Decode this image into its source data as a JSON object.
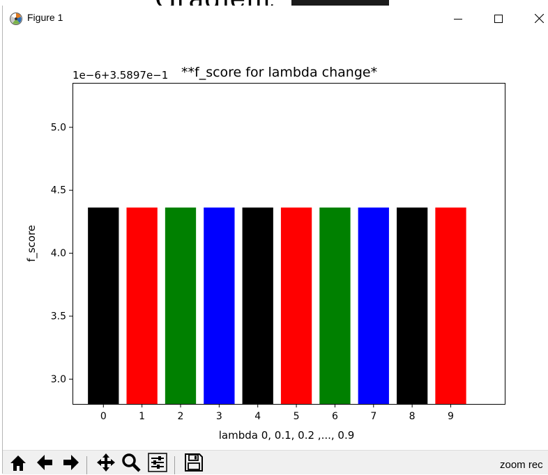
{
  "window": {
    "title": "Figure 1",
    "minimize_icon": "minimize-icon",
    "maximize_icon": "maximize-icon",
    "close_icon": "close-icon"
  },
  "background": {
    "heading_fragment": "Gradient"
  },
  "toolbar": {
    "buttons": [
      "home-icon",
      "back-arrow-icon",
      "forward-arrow-icon",
      "pan-icon",
      "zoom-icon",
      "subplots-icon",
      "save-icon"
    ],
    "status": "zoom rec"
  },
  "chart_data": {
    "type": "bar",
    "title": "**f_score for lambda change*",
    "offset_label": "1e−6+3.5897e−1",
    "xlabel": "lambda 0, 0.1, 0.2 ,..., 0.9",
    "ylabel": "f_score",
    "categories": [
      "0",
      "1",
      "2",
      "3",
      "4",
      "5",
      "6",
      "7",
      "8",
      "9"
    ],
    "values": [
      4.36,
      4.36,
      4.36,
      4.36,
      4.36,
      4.36,
      4.36,
      4.36,
      4.36,
      4.36
    ],
    "colors": [
      "#000000",
      "#ff0000",
      "#008000",
      "#0000ff",
      "#000000",
      "#ff0000",
      "#008000",
      "#0000ff",
      "#000000",
      "#ff0000"
    ],
    "ylim": [
      2.8,
      5.35
    ],
    "xlim": [
      -0.8,
      10.4
    ],
    "yticks": [
      "3.0",
      "3.5",
      "4.0",
      "4.5",
      "5.0"
    ],
    "grid": false
  }
}
